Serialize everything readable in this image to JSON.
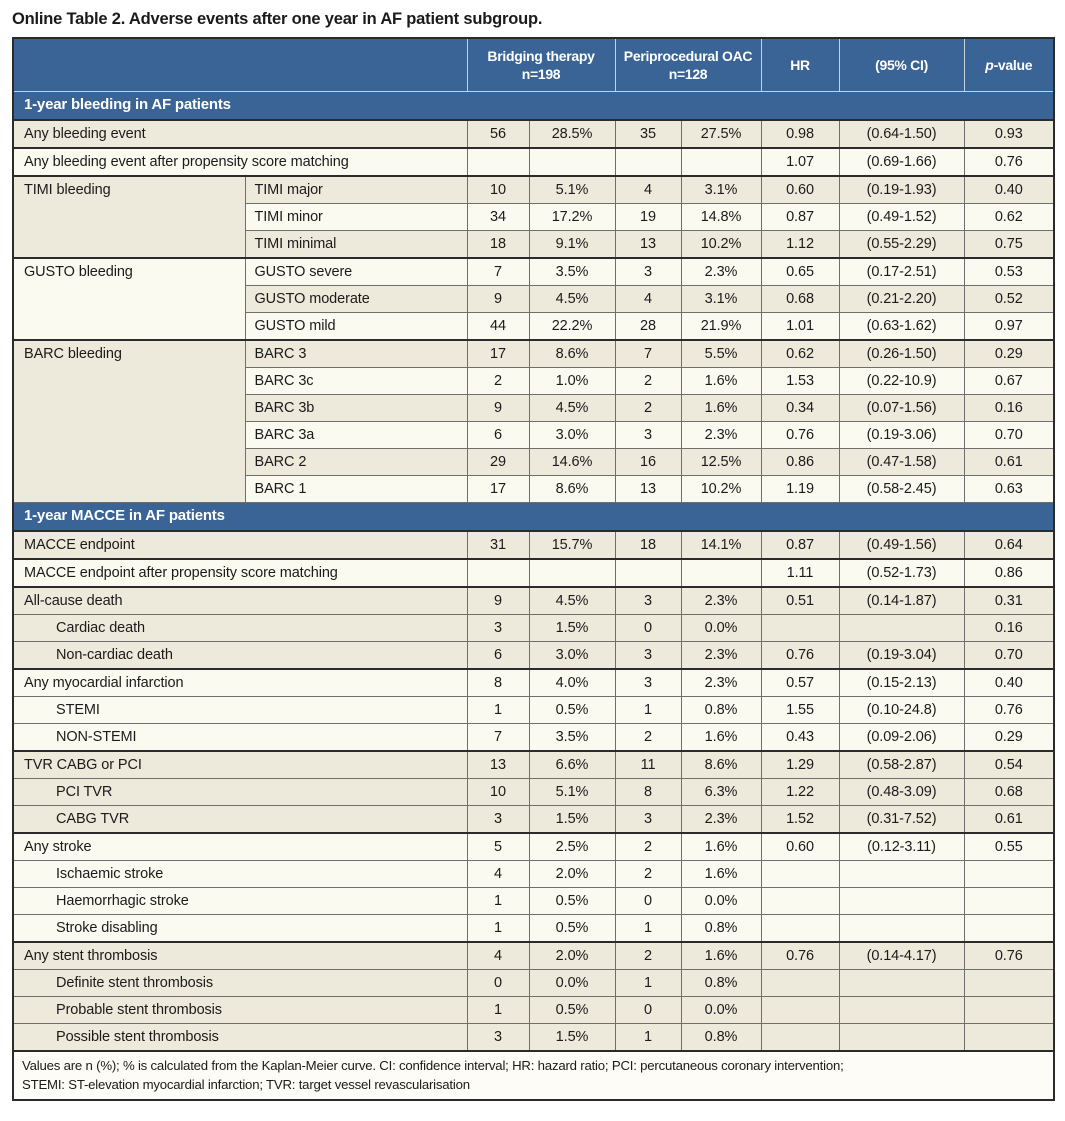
{
  "page_title": "Online Table 2. Adverse events after one year in AF patient subgroup.",
  "header": {
    "bridging": {
      "label": "Bridging therapy",
      "n": "n=198"
    },
    "oac": {
      "label": "Periprocedural OAC",
      "n": "n=128"
    },
    "hr": "HR",
    "ci": "(95% CI)",
    "p_italic": "p",
    "p_rest": "-value"
  },
  "sections": [
    {
      "title": "1-year bleeding in AF patients",
      "groups": [
        {
          "label": null,
          "rows": [
            {
              "label": "Any bleeding event",
              "shade": "dark",
              "n1": "56",
              "pct1": "28.5%",
              "n2": "35",
              "pct2": "27.5%",
              "hr": "0.98",
              "ci": "(0.64-1.50)",
              "p": "0.93"
            }
          ]
        },
        {
          "label": null,
          "rows": [
            {
              "label": "Any bleeding event after propensity score matching",
              "shade": "light",
              "n1": "",
              "pct1": "",
              "n2": "",
              "pct2": "",
              "hr": "1.07",
              "ci": "(0.69-1.66)",
              "p": "0.76"
            }
          ]
        },
        {
          "label": "TIMI bleeding",
          "rows": [
            {
              "label": "TIMI major",
              "shade": "dark",
              "n1": "10",
              "pct1": "5.1%",
              "n2": "4",
              "pct2": "3.1%",
              "hr": "0.60",
              "ci": "(0.19-1.93)",
              "p": "0.40"
            },
            {
              "label": "TIMI minor",
              "shade": "light",
              "n1": "34",
              "pct1": "17.2%",
              "n2": "19",
              "pct2": "14.8%",
              "hr": "0.87",
              "ci": "(0.49-1.52)",
              "p": "0.62"
            },
            {
              "label": "TIMI minimal",
              "shade": "dark",
              "n1": "18",
              "pct1": "9.1%",
              "n2": "13",
              "pct2": "10.2%",
              "hr": "1.12",
              "ci": "(0.55-2.29)",
              "p": "0.75"
            }
          ]
        },
        {
          "label": "GUSTO bleeding",
          "rows": [
            {
              "label": "GUSTO severe",
              "shade": "light",
              "n1": "7",
              "pct1": "3.5%",
              "n2": "3",
              "pct2": "2.3%",
              "hr": "0.65",
              "ci": "(0.17-2.51)",
              "p": "0.53"
            },
            {
              "label": "GUSTO moderate",
              "shade": "dark",
              "n1": "9",
              "pct1": "4.5%",
              "n2": "4",
              "pct2": "3.1%",
              "hr": "0.68",
              "ci": "(0.21-2.20)",
              "p": "0.52"
            },
            {
              "label": "GUSTO mild",
              "shade": "light",
              "n1": "44",
              "pct1": "22.2%",
              "n2": "28",
              "pct2": "21.9%",
              "hr": "1.01",
              "ci": "(0.63-1.62)",
              "p": "0.97"
            }
          ]
        },
        {
          "label": "BARC bleeding",
          "rows": [
            {
              "label": "BARC 3",
              "shade": "dark",
              "n1": "17",
              "pct1": "8.6%",
              "n2": "7",
              "pct2": "5.5%",
              "hr": "0.62",
              "ci": "(0.26-1.50)",
              "p": "0.29"
            },
            {
              "label": "BARC 3c",
              "shade": "light",
              "n1": "2",
              "pct1": "1.0%",
              "n2": "2",
              "pct2": "1.6%",
              "hr": "1.53",
              "ci": "(0.22-10.9)",
              "p": "0.67"
            },
            {
              "label": "BARC 3b",
              "shade": "dark",
              "n1": "9",
              "pct1": "4.5%",
              "n2": "2",
              "pct2": "1.6%",
              "hr": "0.34",
              "ci": "(0.07-1.56)",
              "p": "0.16"
            },
            {
              "label": "BARC 3a",
              "shade": "light",
              "n1": "6",
              "pct1": "3.0%",
              "n2": "3",
              "pct2": "2.3%",
              "hr": "0.76",
              "ci": "(0.19-3.06)",
              "p": "0.70"
            },
            {
              "label": "BARC 2",
              "shade": "dark",
              "n1": "29",
              "pct1": "14.6%",
              "n2": "16",
              "pct2": "12.5%",
              "hr": "0.86",
              "ci": "(0.47-1.58)",
              "p": "0.61"
            },
            {
              "label": "BARC 1",
              "shade": "light",
              "n1": "17",
              "pct1": "8.6%",
              "n2": "13",
              "pct2": "10.2%",
              "hr": "1.19",
              "ci": "(0.58-2.45)",
              "p": "0.63"
            }
          ]
        }
      ]
    },
    {
      "title": "1-year MACCE in AF patients",
      "groups": [
        {
          "label": null,
          "rows": [
            {
              "label": "MACCE endpoint",
              "shade": "dark",
              "n1": "31",
              "pct1": "15.7%",
              "n2": "18",
              "pct2": "14.1%",
              "hr": "0.87",
              "ci": "(0.49-1.56)",
              "p": "0.64"
            }
          ]
        },
        {
          "label": null,
          "rows": [
            {
              "label": "MACCE endpoint after propensity score matching",
              "shade": "light",
              "n1": "",
              "pct1": "",
              "n2": "",
              "pct2": "",
              "hr": "1.11",
              "ci": "(0.52-1.73)",
              "p": "0.86"
            }
          ]
        },
        {
          "label": null,
          "rows": [
            {
              "label": "All-cause death",
              "shade": "dark",
              "n1": "9",
              "pct1": "4.5%",
              "n2": "3",
              "pct2": "2.3%",
              "hr": "0.51",
              "ci": "(0.14-1.87)",
              "p": "0.31"
            },
            {
              "label": "Cardiac death",
              "indent": true,
              "shade": "dark",
              "n1": "3",
              "pct1": "1.5%",
              "n2": "0",
              "pct2": "0.0%",
              "hr": "",
              "ci": "",
              "p": "0.16"
            },
            {
              "label": "Non-cardiac death",
              "indent": true,
              "shade": "dark",
              "n1": "6",
              "pct1": "3.0%",
              "n2": "3",
              "pct2": "2.3%",
              "hr": "0.76",
              "ci": "(0.19-3.04)",
              "p": "0.70"
            }
          ]
        },
        {
          "label": null,
          "rows": [
            {
              "label": "Any myocardial infarction",
              "shade": "light",
              "n1": "8",
              "pct1": "4.0%",
              "n2": "3",
              "pct2": "2.3%",
              "hr": "0.57",
              "ci": "(0.15-2.13)",
              "p": "0.40"
            },
            {
              "label": "STEMI",
              "indent": true,
              "shade": "light",
              "n1": "1",
              "pct1": "0.5%",
              "n2": "1",
              "pct2": "0.8%",
              "hr": "1.55",
              "ci": "(0.10-24.8)",
              "p": "0.76"
            },
            {
              "label": "NON-STEMI",
              "indent": true,
              "shade": "light",
              "n1": "7",
              "pct1": "3.5%",
              "n2": "2",
              "pct2": "1.6%",
              "hr": "0.43",
              "ci": "(0.09-2.06)",
              "p": "0.29"
            }
          ]
        },
        {
          "label": null,
          "rows": [
            {
              "label": "TVR CABG or PCI",
              "shade": "dark",
              "n1": "13",
              "pct1": "6.6%",
              "n2": "11",
              "pct2": "8.6%",
              "hr": "1.29",
              "ci": "(0.58-2.87)",
              "p": "0.54"
            },
            {
              "label": "PCI TVR",
              "indent": true,
              "shade": "dark",
              "n1": "10",
              "pct1": "5.1%",
              "n2": "8",
              "pct2": "6.3%",
              "hr": "1.22",
              "ci": "(0.48-3.09)",
              "p": "0.68"
            },
            {
              "label": "CABG TVR",
              "indent": true,
              "shade": "dark",
              "n1": "3",
              "pct1": "1.5%",
              "n2": "3",
              "pct2": "2.3%",
              "hr": "1.52",
              "ci": "(0.31-7.52)",
              "p": "0.61"
            }
          ]
        },
        {
          "label": null,
          "rows": [
            {
              "label": "Any stroke",
              "shade": "light",
              "n1": "5",
              "pct1": "2.5%",
              "n2": "2",
              "pct2": "1.6%",
              "hr": "0.60",
              "ci": "(0.12-3.11)",
              "p": "0.55"
            },
            {
              "label": "Ischaemic stroke",
              "indent": true,
              "shade": "light",
              "n1": "4",
              "pct1": "2.0%",
              "n2": "2",
              "pct2": "1.6%",
              "hr": "",
              "ci": "",
              "p": ""
            },
            {
              "label": "Haemorrhagic stroke",
              "indent": true,
              "shade": "light",
              "n1": "1",
              "pct1": "0.5%",
              "n2": "0",
              "pct2": "0.0%",
              "hr": "",
              "ci": "",
              "p": ""
            },
            {
              "label": "Stroke disabling",
              "indent": true,
              "shade": "light",
              "n1": "1",
              "pct1": "0.5%",
              "n2": "1",
              "pct2": "0.8%",
              "hr": "",
              "ci": "",
              "p": ""
            }
          ]
        },
        {
          "label": null,
          "rows": [
            {
              "label": "Any stent thrombosis",
              "shade": "dark",
              "n1": "4",
              "pct1": "2.0%",
              "n2": "2",
              "pct2": "1.6%",
              "hr": "0.76",
              "ci": "(0.14-4.17)",
              "p": "0.76"
            },
            {
              "label": "Definite stent thrombosis",
              "indent": true,
              "shade": "dark",
              "n1": "0",
              "pct1": "0.0%",
              "n2": "1",
              "pct2": "0.8%",
              "hr": "",
              "ci": "",
              "p": ""
            },
            {
              "label": "Probable stent thrombosis",
              "indent": true,
              "shade": "dark",
              "n1": "1",
              "pct1": "0.5%",
              "n2": "0",
              "pct2": "0.0%",
              "hr": "",
              "ci": "",
              "p": ""
            },
            {
              "label": "Possible stent thrombosis",
              "indent": true,
              "shade": "dark",
              "n1": "3",
              "pct1": "1.5%",
              "n2": "1",
              "pct2": "0.8%",
              "hr": "",
              "ci": "",
              "p": ""
            }
          ]
        }
      ]
    }
  ],
  "footnote": {
    "line1": "Values are n (%); % is calculated from the Kaplan-Meier curve. CI: confidence interval; HR: hazard ratio; PCI: percutaneous coronary intervention;",
    "line2": "STEMI: ST-elevation myocardial infarction; TVR: target vessel revascularisation"
  },
  "colors": {
    "header_blue": "#3A6396",
    "row_dark": "#EDE9DB",
    "row_light": "#FBFAF1",
    "border_dark": "#2B2B2B",
    "text": "#1B1B1B"
  }
}
